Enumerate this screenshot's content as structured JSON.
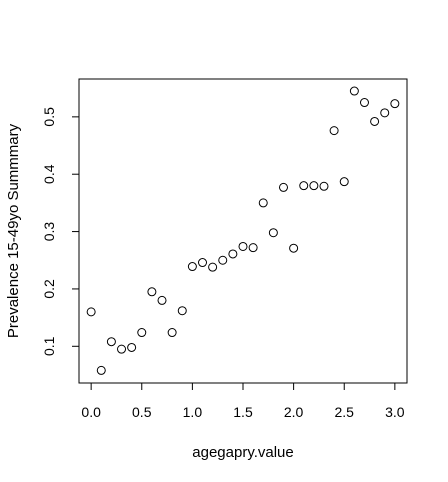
{
  "chart_data": {
    "type": "scatter",
    "title": "",
    "xlabel": "agegapry.value",
    "ylabel": "Prevalence 15-49yo Summmary",
    "xlim": [
      -0.12,
      3.12
    ],
    "ylim": [
      0.036,
      0.566
    ],
    "xticks": [
      0.0,
      0.5,
      1.0,
      1.5,
      2.0,
      2.5,
      3.0
    ],
    "xtick_labels": [
      "0.0",
      "0.5",
      "1.0",
      "1.5",
      "2.0",
      "2.5",
      "3.0"
    ],
    "yticks": [
      0.1,
      0.2,
      0.3,
      0.4,
      0.5
    ],
    "ytick_labels": [
      "0.1",
      "0.2",
      "0.3",
      "0.4",
      "0.5"
    ],
    "grid": false,
    "legend": "none",
    "marker": "open-circle",
    "colors": {
      "marker_stroke": "#000000",
      "axis": "#000000",
      "background": "#ffffff"
    },
    "points": [
      {
        "x": 0.0,
        "y": 0.16
      },
      {
        "x": 0.1,
        "y": 0.058
      },
      {
        "x": 0.2,
        "y": 0.108
      },
      {
        "x": 0.3,
        "y": 0.095
      },
      {
        "x": 0.4,
        "y": 0.098
      },
      {
        "x": 0.5,
        "y": 0.124
      },
      {
        "x": 0.6,
        "y": 0.195
      },
      {
        "x": 0.7,
        "y": 0.18
      },
      {
        "x": 0.8,
        "y": 0.124
      },
      {
        "x": 0.9,
        "y": 0.162
      },
      {
        "x": 1.0,
        "y": 0.239
      },
      {
        "x": 1.1,
        "y": 0.246
      },
      {
        "x": 1.2,
        "y": 0.238
      },
      {
        "x": 1.3,
        "y": 0.25
      },
      {
        "x": 1.4,
        "y": 0.261
      },
      {
        "x": 1.5,
        "y": 0.274
      },
      {
        "x": 1.6,
        "y": 0.272
      },
      {
        "x": 1.7,
        "y": 0.35
      },
      {
        "x": 1.8,
        "y": 0.298
      },
      {
        "x": 1.9,
        "y": 0.377
      },
      {
        "x": 2.0,
        "y": 0.271
      },
      {
        "x": 2.1,
        "y": 0.38
      },
      {
        "x": 2.2,
        "y": 0.38
      },
      {
        "x": 2.3,
        "y": 0.379
      },
      {
        "x": 2.4,
        "y": 0.476
      },
      {
        "x": 2.5,
        "y": 0.387
      },
      {
        "x": 2.6,
        "y": 0.545
      },
      {
        "x": 2.7,
        "y": 0.525
      },
      {
        "x": 2.8,
        "y": 0.492
      },
      {
        "x": 2.9,
        "y": 0.507
      },
      {
        "x": 3.0,
        "y": 0.523
      }
    ]
  }
}
